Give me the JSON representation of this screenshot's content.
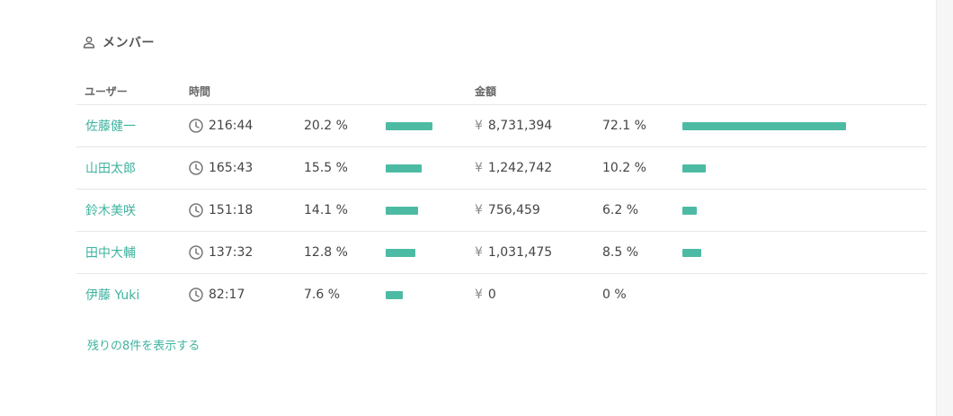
{
  "section": {
    "title": "メンバー",
    "icon": "user-icon"
  },
  "columns": {
    "user": "ユーザー",
    "time": "時間",
    "amount": "金額"
  },
  "members": [
    {
      "name": "佐藤健一",
      "time": "216:44",
      "time_pct": "20.2 %",
      "time_pct_value": 20.2,
      "currency": "¥",
      "amount": "8,731,394",
      "amount_pct": "72.1 %",
      "amount_pct_value": 72.1
    },
    {
      "name": "山田太郎",
      "time": "165:43",
      "time_pct": "15.5 %",
      "time_pct_value": 15.5,
      "currency": "¥",
      "amount": "1,242,742",
      "amount_pct": "10.2 %",
      "amount_pct_value": 10.2
    },
    {
      "name": "鈴木美咲",
      "time": "151:18",
      "time_pct": "14.1 %",
      "time_pct_value": 14.1,
      "currency": "¥",
      "amount": "756,459",
      "amount_pct": "6.2 %",
      "amount_pct_value": 6.2
    },
    {
      "name": "田中大輔",
      "time": "137:32",
      "time_pct": "12.8 %",
      "time_pct_value": 12.8,
      "currency": "¥",
      "amount": "1,031,475",
      "amount_pct": "8.5 %",
      "amount_pct_value": 8.5
    },
    {
      "name": "伊藤 Yuki",
      "time": "82:17",
      "time_pct": "7.6 %",
      "time_pct_value": 7.6,
      "currency": "¥",
      "amount": "0",
      "amount_pct": "0 %",
      "amount_pct_value": 0
    }
  ],
  "show_more": "残りの8件を表示する",
  "colors": {
    "accent": "#3fb39f",
    "bar": "#4dbba4"
  }
}
